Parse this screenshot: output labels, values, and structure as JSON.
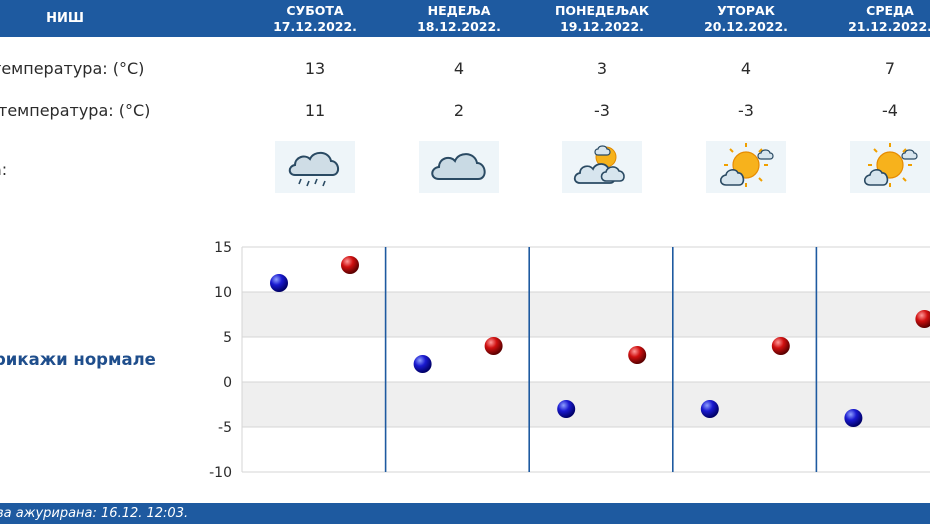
{
  "header": {
    "city": "НИШ",
    "days": [
      {
        "name": "СУБОТА",
        "date": "17.12.2022."
      },
      {
        "name": "НЕДЕЉА",
        "date": "18.12.2022."
      },
      {
        "name": "ПОНЕДЕЉАК",
        "date": "19.12.2022."
      },
      {
        "name": "УТОРАК",
        "date": "20.12.2022."
      },
      {
        "name": "СРЕДА",
        "date": "21.12.2022."
      }
    ]
  },
  "rows": {
    "max_label": "температура: (°C)",
    "max_values": [
      "13",
      "4",
      "3",
      "4",
      "7"
    ],
    "min_label": "температура: (°C)",
    "min_values": [
      "11",
      "2",
      "-3",
      "-3",
      "-4"
    ],
    "weather_label": "а:",
    "weather_icons": [
      "rain-cloud-icon",
      "cloud-icon",
      "partly-cloudy-icon",
      "sunny-cloud-icon",
      "sunny-cloud-icon"
    ]
  },
  "normals_link": "рикажи нормале",
  "footer": {
    "updated": "ва ажурирана:  16.12. 12:03."
  },
  "chart_data": {
    "type": "scatter",
    "categories": [
      "СУБОТА",
      "НЕДЕЉА",
      "ПОНЕДЕЉАК",
      "УТОРАК",
      "СРЕДА"
    ],
    "series": [
      {
        "values": [
          11,
          2,
          -3,
          -3,
          -4
        ],
        "color": "#1010b0"
      },
      {
        "values": [
          13,
          4,
          3,
          4,
          7
        ],
        "color": "#c00000"
      }
    ],
    "yticks": [
      15,
      10,
      5,
      0,
      -5,
      -10
    ],
    "ylim": [
      -10,
      15
    ],
    "grid": true,
    "band_color": "#efefef",
    "divider_color": "#1e5aa0"
  }
}
